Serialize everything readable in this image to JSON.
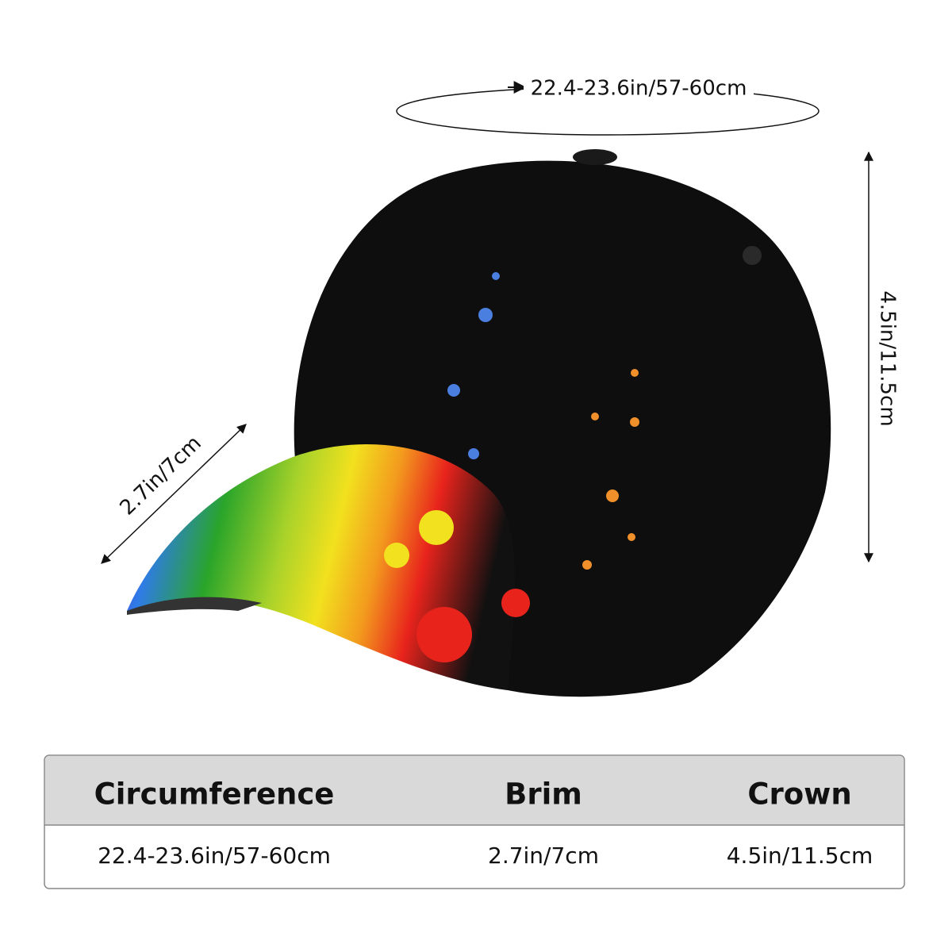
{
  "dimensions": {
    "circumference": "22.4-23.6in/57-60cm",
    "brim": "2.7in/7cm",
    "crown": "4.5in/11.5cm"
  },
  "table": {
    "header": [
      "Circumference",
      "Brim",
      "Crown"
    ],
    "rows": [
      [
        "22.4-23.6in/57-60cm",
        "2.7in/7cm",
        "4.5in/11.5cm"
      ]
    ]
  }
}
